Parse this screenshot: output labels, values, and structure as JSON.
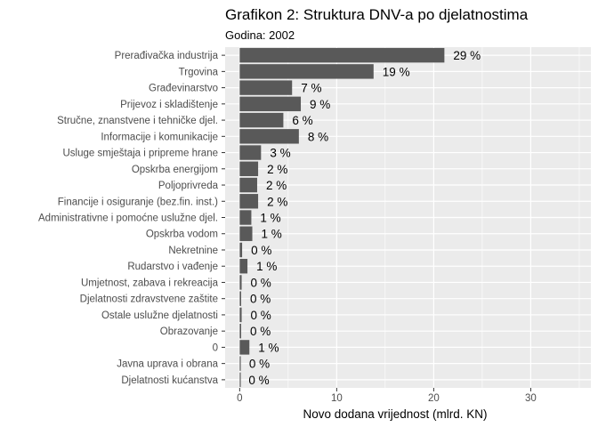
{
  "chart_data": {
    "type": "bar",
    "orientation": "horizontal",
    "title": "Grafikon 2: Struktura DNV-a po djelatnostima",
    "subtitle": "Godina: 2002",
    "xlabel": "Novo dodana vrijednost (mlrd. KN)",
    "ylabel": "",
    "xlim": [
      -1.5,
      36.2
    ],
    "xticks": [
      0,
      10,
      20,
      30
    ],
    "grid": true,
    "legend": "none",
    "bar_color": "#595959",
    "panel_color": "#ebebeb",
    "categories": [
      "Prerađivačka industrija",
      "Trgovina",
      "Građevinarstvo",
      "Prijevoz i skladištenje",
      "Stručne, znanstvene i tehničke djel.",
      "Informacije i komunikacije",
      "Usluge smještaja i pripreme hrane",
      "Opskrba energijom",
      "Poljoprivreda",
      "Financije i osiguranje (bez.fin. inst.)",
      "Administrativne i pomoćne uslužne djel.",
      "Opskrba vodom",
      "Nekretnine",
      "Rudarstvo i vađenje",
      "Umjetnost, zabava i rekreacija",
      "Djelatnosti zdravstvene zaštite",
      "Ostale uslužne djelatnosti",
      "Obrazovanje",
      "0",
      "Javna uprava i obrana",
      "Djelatnosti kućanstva"
    ],
    "values": [
      21.1,
      13.8,
      5.4,
      6.3,
      4.5,
      6.1,
      2.2,
      1.9,
      1.8,
      1.9,
      1.2,
      1.3,
      0.25,
      0.8,
      0.2,
      0.15,
      0.2,
      0.15,
      1.0,
      0.05,
      0.0
    ],
    "labels": [
      "29 %",
      "19 %",
      "7 %",
      "9 %",
      "6 %",
      "8 %",
      "3 %",
      "2 %",
      "2 %",
      "2 %",
      "1 %",
      "1 %",
      "0 %",
      "1 %",
      "0 %",
      "0 %",
      "0 %",
      "0 %",
      "1 %",
      "0 %",
      "0 %"
    ]
  }
}
